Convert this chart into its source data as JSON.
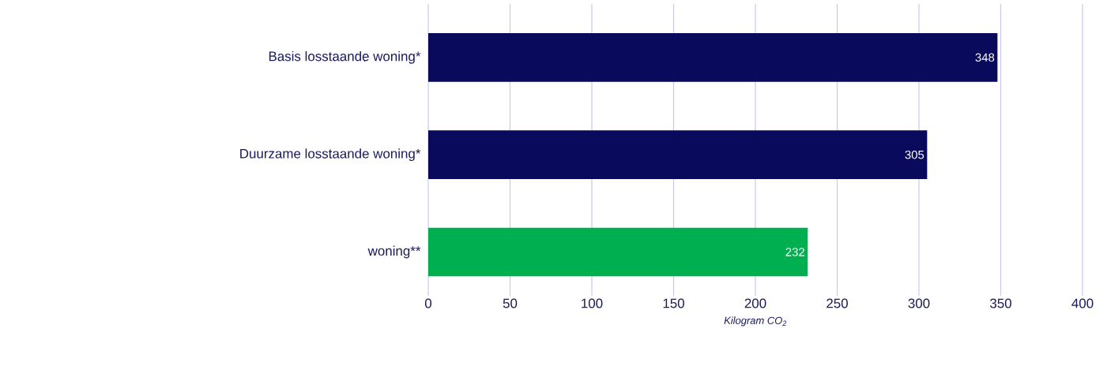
{
  "chart_data": {
    "type": "bar",
    "orientation": "horizontal",
    "categories": [
      "Basis losstaande woning*",
      "Duurzame losstaande woning*",
      "woning**"
    ],
    "values": [
      348,
      305,
      232
    ],
    "colors": [
      "#0a0a5c",
      "#0a0a5c",
      "#00b050"
    ],
    "xlim": [
      0,
      400
    ],
    "xticks": [
      0,
      50,
      100,
      150,
      200,
      250,
      300,
      350,
      400
    ],
    "xlabel": "Kilogram CO$_{2}$",
    "grid": "x",
    "data_labels": true
  }
}
